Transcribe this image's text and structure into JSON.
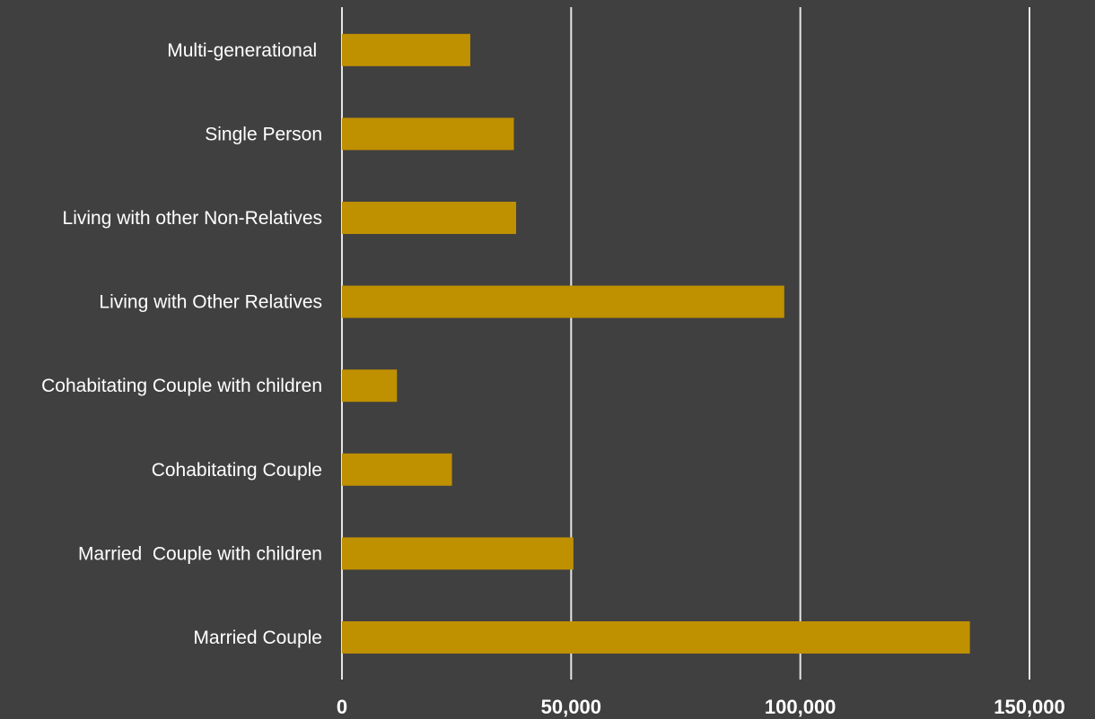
{
  "chart_data": {
    "type": "bar",
    "orientation": "horizontal",
    "title": "",
    "xlabel": "",
    "ylabel": "",
    "categories": [
      "Married Couple",
      "Married  Couple with children",
      "Cohabitating Couple",
      "Cohabitating Couple with children",
      "Living with Other Relatives",
      "Living with other Non-Relatives",
      "Single Person",
      "Multi-generational "
    ],
    "values": [
      137000,
      50500,
      24000,
      12000,
      96500,
      38000,
      37500,
      28000
    ],
    "xlim": [
      0,
      150000
    ],
    "x_ticks": [
      0,
      50000,
      100000,
      150000
    ],
    "x_tick_labels": [
      "0",
      "50,000",
      "100,000",
      "150,000"
    ],
    "grid": true,
    "legend": "none",
    "colors": {
      "bar": "#bf9000",
      "background": "#404040",
      "gridline": "#e6e6e6",
      "text": "#ffffff"
    }
  }
}
